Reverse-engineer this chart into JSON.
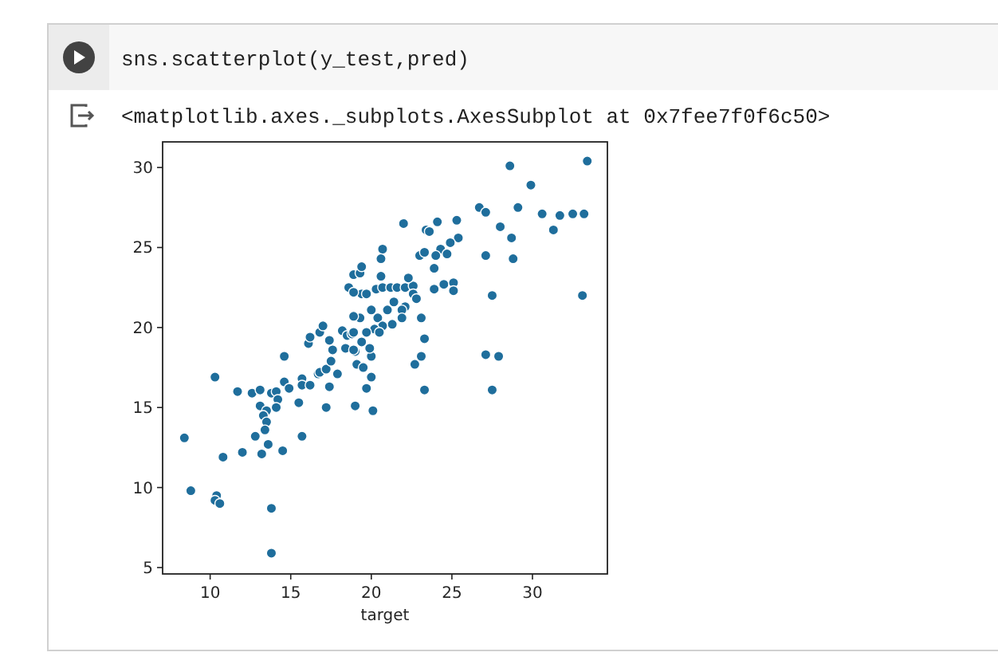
{
  "chart_data": {
    "type": "scatter",
    "xlabel": "target",
    "annotations": [
      "sns.scatterplot(y_test,pred)",
      "<matplotlib.axes._subplots.AxesSubplot at 0x7fee7f0f6c50>"
    ],
    "xlim": [
      7.05,
      34.65
    ],
    "ylim": [
      4.6,
      31.6
    ],
    "xticks": [
      10,
      15,
      20,
      25,
      30
    ],
    "yticks": [
      5,
      10,
      15,
      20,
      25,
      30
    ],
    "color": "#1f6e9c",
    "marker": "circle",
    "x": [
      8.4,
      8.8,
      10.3,
      10.8,
      10.4,
      10.3,
      10.6,
      11.7,
      12.0,
      12.6,
      13.1,
      13.1,
      12.8,
      13.2,
      13.5,
      13.3,
      13.5,
      13.4,
      13.6,
      13.8,
      14.1,
      14.2,
      14.1,
      13.8,
      13.8,
      14.5,
      14.6,
      14.6,
      14.9,
      15.5,
      15.7,
      15.7,
      15.7,
      16.2,
      16.7,
      16.8,
      17.2,
      17.4,
      17.2,
      17.5,
      17.6,
      17.9,
      19.0,
      19.1,
      19.5,
      19.7,
      20.1,
      20.0,
      20.0,
      19.0,
      22.7,
      23.1,
      23.3,
      27.1,
      27.9,
      27.5,
      16.1,
      16.2,
      16.8,
      17.0,
      17.4,
      18.2,
      18.5,
      18.8,
      18.4,
      18.9,
      18.6,
      18.9,
      19.3,
      19.4,
      19.4,
      19.7,
      20.3,
      20.7,
      21.2,
      21.6,
      22.1,
      22.6,
      22.6,
      22.8,
      18.9,
      21.4,
      22.1,
      21.9,
      21.0,
      20.0,
      19.3,
      18.9,
      20.4,
      21.9,
      23.1,
      21.3,
      20.7,
      20.2,
      20.5,
      19.7,
      18.9,
      19.4,
      19.9,
      23.3,
      20.7,
      20.6,
      20.6,
      22.3,
      22.0,
      23.4,
      23.6,
      24.1,
      25.3,
      25.4,
      24.9,
      24.3,
      24.0,
      24.7,
      23.0,
      23.3,
      23.9,
      23.9,
      24.5,
      25.1,
      25.1,
      26.7,
      27.1,
      28.6,
      29.9,
      29.1,
      30.6,
      31.7,
      32.5,
      33.2,
      31.3,
      28.0,
      28.7,
      27.1,
      28.8,
      27.5,
      33.1,
      33.4
    ],
    "values": [
      13.1,
      9.8,
      16.9,
      11.9,
      9.5,
      9.2,
      9.0,
      16.0,
      12.2,
      15.9,
      16.1,
      15.1,
      13.2,
      12.1,
      14.8,
      14.5,
      14.1,
      13.6,
      12.7,
      15.9,
      16.0,
      15.5,
      15.0,
      8.7,
      5.9,
      12.3,
      18.2,
      16.6,
      16.2,
      15.3,
      16.8,
      16.4,
      13.2,
      16.4,
      17.1,
      17.2,
      17.4,
      16.3,
      15.0,
      17.9,
      18.6,
      17.1,
      15.1,
      17.7,
      17.5,
      16.2,
      14.8,
      16.9,
      18.2,
      18.5,
      17.7,
      18.2,
      16.1,
      18.3,
      18.2,
      16.1,
      19.0,
      19.4,
      19.7,
      20.1,
      19.2,
      19.8,
      19.5,
      19.6,
      18.7,
      18.6,
      22.5,
      23.3,
      23.4,
      23.8,
      22.1,
      22.1,
      22.4,
      22.5,
      22.5,
      22.5,
      22.5,
      22.6,
      22.1,
      21.8,
      22.2,
      21.6,
      21.3,
      21.1,
      21.1,
      21.1,
      20.6,
      20.7,
      20.6,
      20.6,
      20.6,
      20.2,
      20.1,
      19.9,
      19.7,
      19.7,
      19.7,
      19.1,
      18.7,
      19.3,
      24.9,
      24.3,
      23.2,
      23.1,
      26.5,
      26.1,
      26.0,
      26.6,
      26.7,
      25.6,
      25.3,
      24.9,
      24.5,
      24.6,
      24.5,
      24.7,
      23.7,
      22.4,
      22.7,
      22.8,
      22.3,
      27.5,
      27.2,
      30.1,
      28.9,
      27.5,
      27.1,
      27.0,
      27.1,
      27.1,
      26.1,
      26.3,
      25.6,
      24.5,
      24.3,
      22.0,
      22.0,
      30.4
    ]
  }
}
